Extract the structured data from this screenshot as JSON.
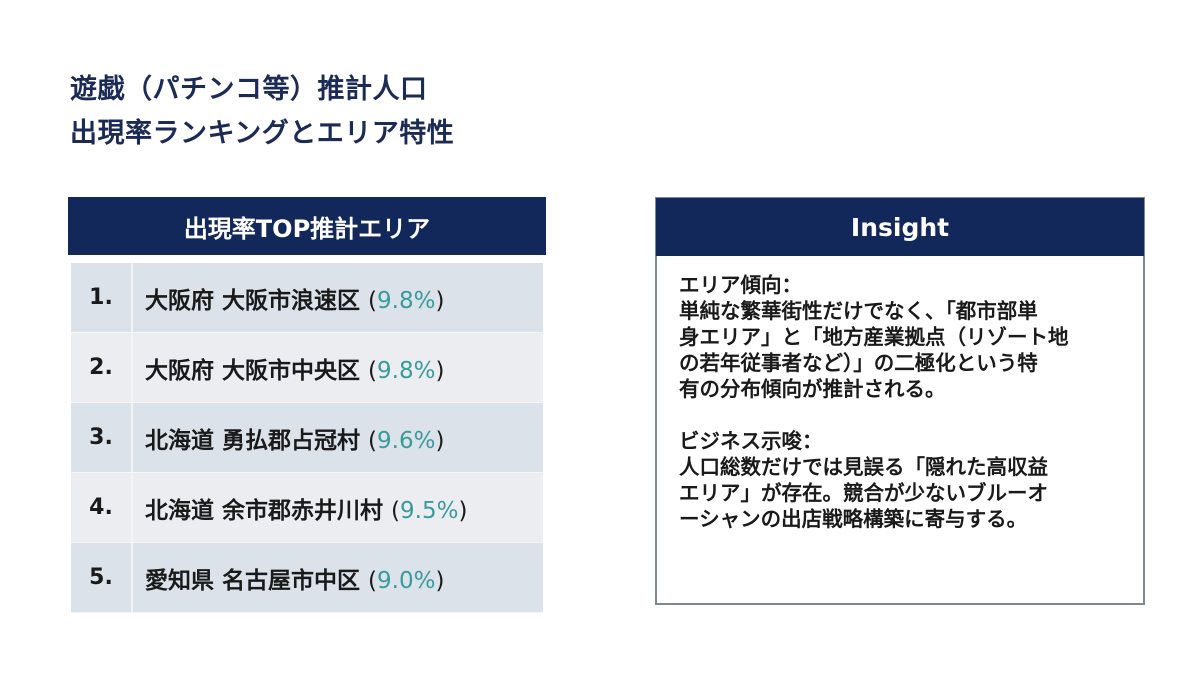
{
  "title": {
    "line1": "遊戯（パチンコ等）推計人口",
    "line2": "出現率ランキングとエリア特性"
  },
  "ranking": {
    "header": "出現率TOP推計エリア",
    "items": [
      {
        "rank": "1.",
        "area": "大阪府 大阪市浪速区",
        "rate": "9.8%"
      },
      {
        "rank": "2.",
        "area": "大阪府 大阪市中央区",
        "rate": "9.8%"
      },
      {
        "rank": "3.",
        "area": "北海道 勇払郡占冠村",
        "rate": "9.6%"
      },
      {
        "rank": "4.",
        "area": "北海道 余市郡赤井川村",
        "rate": "9.5%"
      },
      {
        "rank": "5.",
        "area": "愛知県 名古屋市中区",
        "rate": "9.0%"
      }
    ]
  },
  "insight": {
    "header": "Insight",
    "sections": [
      {
        "heading": "エリア傾向：",
        "lines": [
          "単純な繁華街性だけでなく、「都市部単",
          "身エリア」と「地方産業拠点（リゾート地",
          "の若年従事者など）」の二極化という特",
          "有の分布傾向が推計される。"
        ]
      },
      {
        "heading": "ビジネス示唆：",
        "lines": [
          "人口総数だけでは見誤る「隠れた高収益",
          "エリア」が存在。競合が少ないブルーオ",
          "ーシャンの出店戦略構築に寄与する。"
        ]
      }
    ]
  },
  "colors": {
    "navy": "#13285a",
    "title_text": "#1b2b55",
    "rate_teal": "#3a9a9c",
    "row_dark": "#dce2e9",
    "row_light": "#ebedf1",
    "border_gray": "#7d8796"
  }
}
